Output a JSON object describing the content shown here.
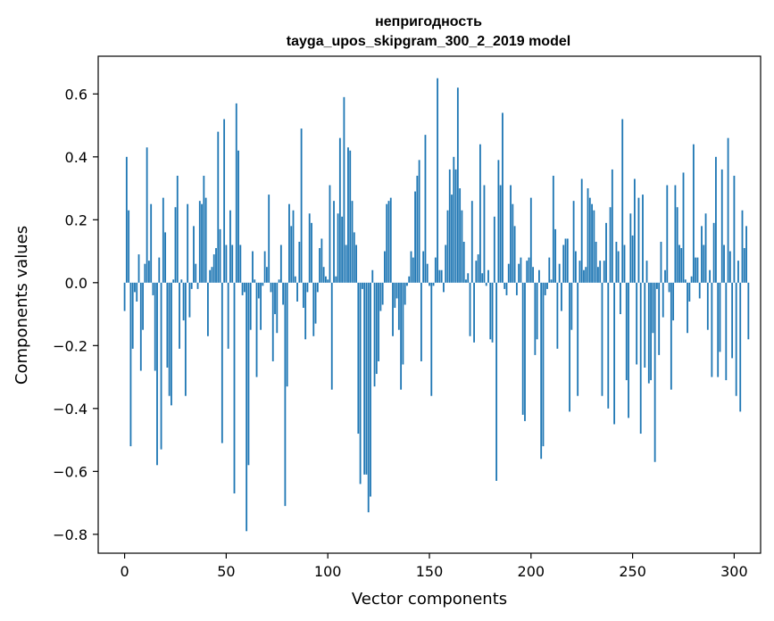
{
  "chart_data": {
    "type": "bar",
    "title": "непригодность",
    "subtitle": "tayga_upos_skipgram_300_2_2019 model",
    "xlabel": "Vector components",
    "ylabel": "Components values",
    "xlim": [
      -13,
      313
    ],
    "ylim": [
      -0.86,
      0.72
    ],
    "xticks": [
      0,
      50,
      100,
      150,
      200,
      250,
      300
    ],
    "xtick_labels": [
      "0",
      "50",
      "100",
      "150",
      "200",
      "250",
      "300"
    ],
    "yticks": [
      -0.8,
      -0.6,
      -0.4,
      -0.2,
      0.0,
      0.2,
      0.4,
      0.6
    ],
    "ytick_labels": [
      "−0.8",
      "−0.6",
      "−0.4",
      "−0.2",
      "0.0",
      "0.2",
      "0.4",
      "0.6"
    ],
    "grid": false,
    "bar_color": "#1f77b4",
    "x_start": 0,
    "values": [
      -0.09,
      0.4,
      0.23,
      -0.52,
      -0.21,
      -0.03,
      -0.06,
      0.09,
      -0.28,
      -0.15,
      0.06,
      0.43,
      0.07,
      0.25,
      -0.04,
      -0.28,
      -0.58,
      0.08,
      -0.53,
      0.27,
      0.16,
      -0.27,
      -0.36,
      -0.39,
      0.01,
      0.24,
      0.34,
      -0.21,
      0.01,
      -0.12,
      -0.36,
      0.25,
      -0.11,
      -0.02,
      0.18,
      0.06,
      -0.02,
      0.26,
      0.25,
      0.34,
      0.27,
      -0.17,
      0.04,
      0.05,
      0.09,
      0.11,
      0.48,
      0.17,
      -0.51,
      0.52,
      0.12,
      -0.21,
      0.23,
      0.12,
      -0.67,
      0.57,
      0.42,
      0.12,
      -0.04,
      -0.03,
      -0.79,
      -0.58,
      -0.15,
      0.1,
      0.01,
      -0.3,
      -0.05,
      -0.15,
      -0.01,
      0.1,
      0.05,
      0.28,
      -0.03,
      -0.25,
      -0.1,
      -0.16,
      0.01,
      0.12,
      -0.07,
      -0.71,
      -0.33,
      0.25,
      0.18,
      0.23,
      0.02,
      -0.06,
      0.13,
      0.49,
      -0.08,
      -0.18,
      -0.03,
      0.22,
      0.19,
      -0.17,
      -0.13,
      -0.03,
      0.11,
      0.14,
      0.05,
      0.02,
      0.01,
      0.31,
      -0.34,
      0.26,
      0.02,
      0.22,
      0.46,
      0.21,
      0.59,
      0.12,
      0.43,
      0.42,
      0.26,
      0.16,
      0.12,
      -0.48,
      -0.64,
      -0.02,
      -0.61,
      -0.61,
      -0.73,
      -0.68,
      0.04,
      -0.33,
      -0.29,
      -0.25,
      -0.09,
      -0.07,
      0.1,
      0.25,
      0.26,
      0.27,
      -0.17,
      -0.08,
      -0.05,
      -0.15,
      -0.34,
      -0.26,
      -0.07,
      -0.01,
      0.02,
      0.1,
      0.08,
      0.29,
      0.34,
      0.39,
      -0.25,
      0.1,
      0.47,
      0.06,
      -0.01,
      -0.36,
      -0.01,
      0.08,
      0.65,
      0.04,
      0.04,
      -0.03,
      0.12,
      0.23,
      0.36,
      0.28,
      0.4,
      0.36,
      0.62,
      0.3,
      0.23,
      0.13,
      0.01,
      0.03,
      -0.17,
      0.26,
      -0.19,
      0.07,
      0.09,
      0.44,
      0.03,
      0.31,
      -0.01,
      0.04,
      -0.18,
      -0.19,
      0.21,
      -0.63,
      0.39,
      0.31,
      0.54,
      -0.02,
      -0.04,
      0.06,
      0.31,
      0.25,
      0.18,
      -0.04,
      0.06,
      0.08,
      -0.42,
      -0.44,
      0.07,
      0.08,
      0.27,
      0.05,
      -0.23,
      -0.18,
      0.04,
      -0.56,
      -0.52,
      -0.04,
      -0.02,
      0.08,
      0.01,
      0.34,
      0.17,
      -0.21,
      0.06,
      -0.09,
      0.12,
      0.14,
      0.14,
      -0.41,
      -0.15,
      0.26,
      0.1,
      -0.36,
      0.07,
      0.33,
      0.04,
      0.05,
      0.3,
      0.27,
      0.25,
      0.23,
      0.13,
      0.05,
      0.07,
      -0.36,
      0.07,
      0.19,
      -0.4,
      0.24,
      0.36,
      -0.45,
      0.13,
      0.1,
      -0.1,
      0.52,
      0.12,
      -0.31,
      -0.43,
      0.22,
      0.15,
      0.33,
      -0.26,
      0.27,
      -0.48,
      0.28,
      -0.27,
      0.07,
      -0.32,
      -0.31,
      -0.16,
      -0.57,
      -0.02,
      -0.23,
      0.13,
      -0.11,
      0.04,
      0.31,
      -0.03,
      -0.34,
      -0.12,
      0.31,
      0.24,
      0.12,
      0.11,
      0.35,
      0.01,
      -0.16,
      -0.06,
      0.02,
      0.44,
      0.08,
      0.08,
      -0.05,
      0.18,
      0.12,
      0.22,
      -0.15,
      0.04,
      -0.3,
      0.19,
      0.4,
      -0.3,
      -0.22,
      0.36,
      0.12,
      -0.31,
      0.46,
      0.1,
      -0.24,
      0.34,
      -0.36,
      0.07,
      -0.41,
      0.23,
      0.11,
      0.18,
      -0.18
    ]
  }
}
